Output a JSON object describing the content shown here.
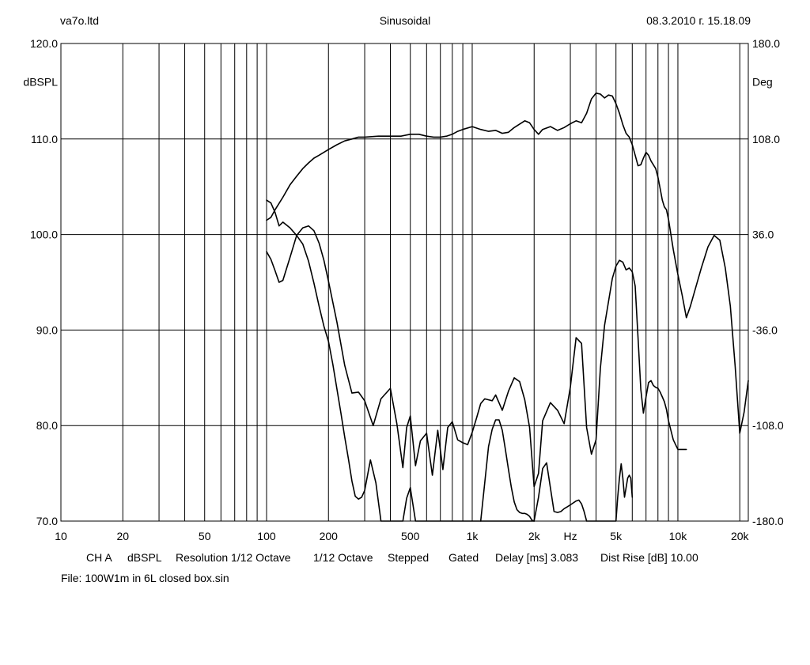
{
  "header": {
    "left": "va7o.ltd",
    "center": "Sinusoidal",
    "right": "08.3.2010 г. 15.18.09"
  },
  "footer": {
    "channel": "CH A",
    "unit": "dBSPL",
    "resolution": "Resolution 1/12 Octave",
    "smoothing": "1/12 Octave",
    "mode": "Stepped",
    "gating": "Gated",
    "delay": "Delay [ms] 3.083",
    "dist_rise": "Dist Rise [dB] 10.00",
    "file": "File: 100W1m in 6L closed box.sin"
  },
  "colors": {
    "background": "#ffffff",
    "grid": "#000000",
    "trace": "#000000"
  },
  "chart_data": {
    "type": "line",
    "title": "Sinusoidal",
    "x_scale": "log",
    "xlim": [
      10,
      22000
    ],
    "ylim": [
      70,
      120
    ],
    "y2lim": [
      -180,
      180
    ],
    "ylabel": "dBSPL",
    "y2label": "Deg",
    "xunit": "Hz",
    "grid": true,
    "x_ticks": [
      {
        "value": 10,
        "label": "10"
      },
      {
        "value": 20,
        "label": "20"
      },
      {
        "value": 50,
        "label": "50"
      },
      {
        "value": 100,
        "label": "100"
      },
      {
        "value": 200,
        "label": "200"
      },
      {
        "value": 500,
        "label": "500"
      },
      {
        "value": 1000,
        "label": "1k"
      },
      {
        "value": 2000,
        "label": "2k"
      },
      {
        "value": 5000,
        "label": "5k"
      },
      {
        "value": 10000,
        "label": "10k"
      },
      {
        "value": 20000,
        "label": "20k"
      }
    ],
    "y_ticks": [
      {
        "value": 120,
        "label": "120.0"
      },
      {
        "value": 110,
        "label": "110.0"
      },
      {
        "value": 100,
        "label": "100.0"
      },
      {
        "value": 90,
        "label": "90.0"
      },
      {
        "value": 80,
        "label": "80.0"
      },
      {
        "value": 70,
        "label": "70.0"
      }
    ],
    "y2_ticks": [
      {
        "value": 180,
        "label": "180.0"
      },
      {
        "value": 108,
        "label": "108.0"
      },
      {
        "value": 36,
        "label": "36.0"
      },
      {
        "value": -36,
        "label": "-36.0"
      },
      {
        "value": -108,
        "label": "-108.0"
      },
      {
        "value": -180,
        "label": "-180.0"
      }
    ],
    "series": [
      {
        "axis": "left",
        "x": [
          100,
          105,
          110,
          120,
          130,
          140,
          150,
          160,
          170,
          180,
          200,
          220,
          240,
          260,
          280,
          300,
          350,
          400,
          450,
          500,
          550,
          600,
          650,
          700,
          750,
          800,
          850,
          900,
          1000,
          1100,
          1200,
          1300,
          1400,
          1500,
          1600,
          1800,
          1900,
          2000,
          2100,
          2200,
          2400,
          2600,
          2800,
          3000,
          3200,
          3400,
          3600,
          3800,
          4000,
          4200,
          4400,
          4600,
          4800,
          5000,
          5200,
          5400,
          5600,
          5800,
          6000,
          6200,
          6400,
          6600,
          6800,
          7000,
          7200,
          7400,
          7600,
          7800,
          8000,
          8200,
          8400,
          8600,
          8800,
          9000,
          9500,
          10000,
          10500,
          11000,
          11500,
          12000,
          13000,
          14000,
          15000,
          16000,
          17000,
          18000,
          19000,
          20000,
          21000,
          22000
        ],
        "y": [
          101.5,
          101.8,
          102.6,
          103.9,
          105.2,
          106.1,
          106.9,
          107.5,
          108.0,
          108.3,
          108.9,
          109.4,
          109.8,
          110.0,
          110.2,
          110.2,
          110.3,
          110.3,
          110.3,
          110.5,
          110.5,
          110.3,
          110.2,
          110.2,
          110.3,
          110.5,
          110.8,
          111.0,
          111.3,
          111.0,
          110.8,
          110.9,
          110.6,
          110.7,
          111.2,
          111.9,
          111.7,
          111.0,
          110.5,
          111.0,
          111.3,
          110.9,
          111.2,
          111.6,
          111.9,
          111.7,
          112.7,
          114.2,
          114.8,
          114.7,
          114.3,
          114.6,
          114.5,
          113.7,
          112.7,
          111.5,
          110.6,
          110.2,
          109.4,
          108.3,
          107.2,
          107.3,
          108.0,
          108.6,
          108.3,
          107.7,
          107.3,
          106.9,
          106.0,
          104.8,
          103.6,
          102.9,
          102.6,
          101.6,
          98.4,
          95.8,
          93.6,
          91.3,
          92.5,
          93.9,
          96.5,
          98.7,
          99.9,
          99.4,
          96.5,
          92.5,
          86.2,
          79.2,
          81.4,
          84.7
        ]
      },
      {
        "axis": "left",
        "x": [
          100,
          105,
          110,
          115,
          120,
          130,
          140,
          150,
          160,
          170,
          180,
          190,
          200,
          210,
          220,
          230,
          240,
          250,
          260,
          270,
          280,
          290,
          300,
          320,
          340,
          360,
          380,
          400,
          430,
          460,
          480,
          500,
          530,
          560,
          600,
          640,
          680,
          700,
          740,
          780,
          820,
          860,
          900,
          950,
          1000,
          1050,
          1100,
          1150,
          1200,
          1250,
          1300,
          1350,
          1400,
          1450,
          1500,
          1550,
          1600,
          1650,
          1700,
          1750,
          1800,
          1900,
          2000
        ],
        "y": [
          103.6,
          103.3,
          102.3,
          100.9,
          101.3,
          100.7,
          99.9,
          99.0,
          97.2,
          94.9,
          92.5,
          90.4,
          88.8,
          86.4,
          83.8,
          81.3,
          78.8,
          76.5,
          74.2,
          72.6,
          72.3,
          72.5,
          73.2,
          76.4,
          74.0,
          70.0,
          70.0,
          70.0,
          70.0,
          70.0,
          72.4,
          73.5,
          70.0,
          70.0,
          70.0,
          70.0,
          70.0,
          70.0,
          70.0,
          70.0,
          70.0,
          70.0,
          70.0,
          70.0,
          70.0,
          70.0,
          70.0,
          70.0,
          70.0,
          70.0,
          70.0,
          70.0,
          70.0,
          70.0,
          70.0,
          70.0,
          70.0,
          70.0,
          70.0,
          70.0,
          70.0,
          70.0,
          70.0
        ]
      },
      {
        "axis": "left",
        "x": [
          100,
          105,
          110,
          115,
          120,
          130,
          140,
          150,
          160,
          170,
          180,
          190,
          200,
          220,
          240,
          260,
          280,
          300,
          330,
          360,
          400,
          430,
          460,
          480,
          500,
          530,
          560,
          600,
          640,
          680,
          720,
          760,
          800,
          850,
          900,
          950,
          1000,
          1050,
          1100,
          1150,
          1200,
          1250,
          1300,
          1400,
          1500,
          1600,
          1700,
          1800,
          1900,
          2000,
          2100,
          2200,
          2400,
          2600,
          2800,
          3000,
          3200,
          3400,
          3600,
          3800,
          4000,
          4200,
          4400,
          4600,
          4800,
          5000,
          5200,
          5400,
          5600,
          5800,
          6000,
          6200,
          6400,
          6600,
          6800,
          7000,
          7200,
          7400,
          7600,
          7800,
          8000,
          8200,
          8400,
          8600,
          8800,
          9000,
          9500,
          10000,
          10500,
          11000
        ],
        "y": [
          98.2,
          97.4,
          96.2,
          95.0,
          95.2,
          97.6,
          99.9,
          100.7,
          100.9,
          100.4,
          99.1,
          97.3,
          95.1,
          90.8,
          86.3,
          83.4,
          83.5,
          82.6,
          80.0,
          82.8,
          83.9,
          80.2,
          75.6,
          79.8,
          81.0,
          75.8,
          78.4,
          79.2,
          74.8,
          79.5,
          75.4,
          79.8,
          80.4,
          78.5,
          78.2,
          78.0,
          79.3,
          80.8,
          82.3,
          82.8,
          82.7,
          82.6,
          83.2,
          81.6,
          83.6,
          85.0,
          84.6,
          82.7,
          79.8,
          73.6,
          75.0,
          80.5,
          82.4,
          81.6,
          80.2,
          84.0,
          89.2,
          88.6,
          79.8,
          77.0,
          78.5,
          86.0,
          90.5,
          93.0,
          95.4,
          96.7,
          97.3,
          97.1,
          96.3,
          96.5,
          96.1,
          94.6,
          89.2,
          83.8,
          81.3,
          83.0,
          84.5,
          84.7,
          84.2,
          84.0,
          83.9,
          83.5,
          83.0,
          82.5,
          81.7,
          80.5,
          78.5,
          77.5,
          77.5,
          77.5
        ]
      },
      {
        "axis": "left",
        "x": [
          1100,
          1150,
          1200,
          1250,
          1300,
          1350,
          1400,
          1450,
          1500,
          1550,
          1600,
          1650,
          1700,
          1750,
          1800,
          1850,
          1900,
          1950,
          2000,
          2100,
          2200,
          2300,
          2400,
          2500,
          2600,
          2700,
          2800,
          2900,
          3000,
          3100,
          3200,
          3300,
          3400,
          3500,
          3600,
          3700,
          3800,
          3900,
          4000,
          4100,
          4200,
          4300,
          4400,
          4500,
          4600,
          4700,
          4800,
          4900,
          5000,
          5100,
          5200,
          5300,
          5400,
          5500,
          5600,
          5700,
          5800,
          5900,
          6000
        ],
        "y": [
          70.0,
          74.0,
          77.8,
          79.6,
          80.6,
          80.6,
          79.5,
          77.5,
          75.4,
          73.5,
          72.0,
          71.2,
          70.9,
          70.8,
          70.8,
          70.7,
          70.5,
          70.1,
          70.0,
          72.5,
          75.5,
          76.1,
          73.5,
          71.0,
          70.9,
          71.0,
          71.3,
          71.5,
          71.7,
          71.9,
          72.1,
          72.2,
          71.8,
          71.0,
          70.0,
          70.0,
          70.0,
          70.0,
          70.0,
          70.0,
          70.0,
          70.0,
          70.0,
          70.0,
          70.0,
          70.0,
          70.0,
          70.0,
          70.0,
          72.5,
          74.5,
          76.0,
          74.5,
          72.5,
          73.5,
          74.5,
          74.8,
          74.5,
          72.5
        ]
      }
    ]
  }
}
